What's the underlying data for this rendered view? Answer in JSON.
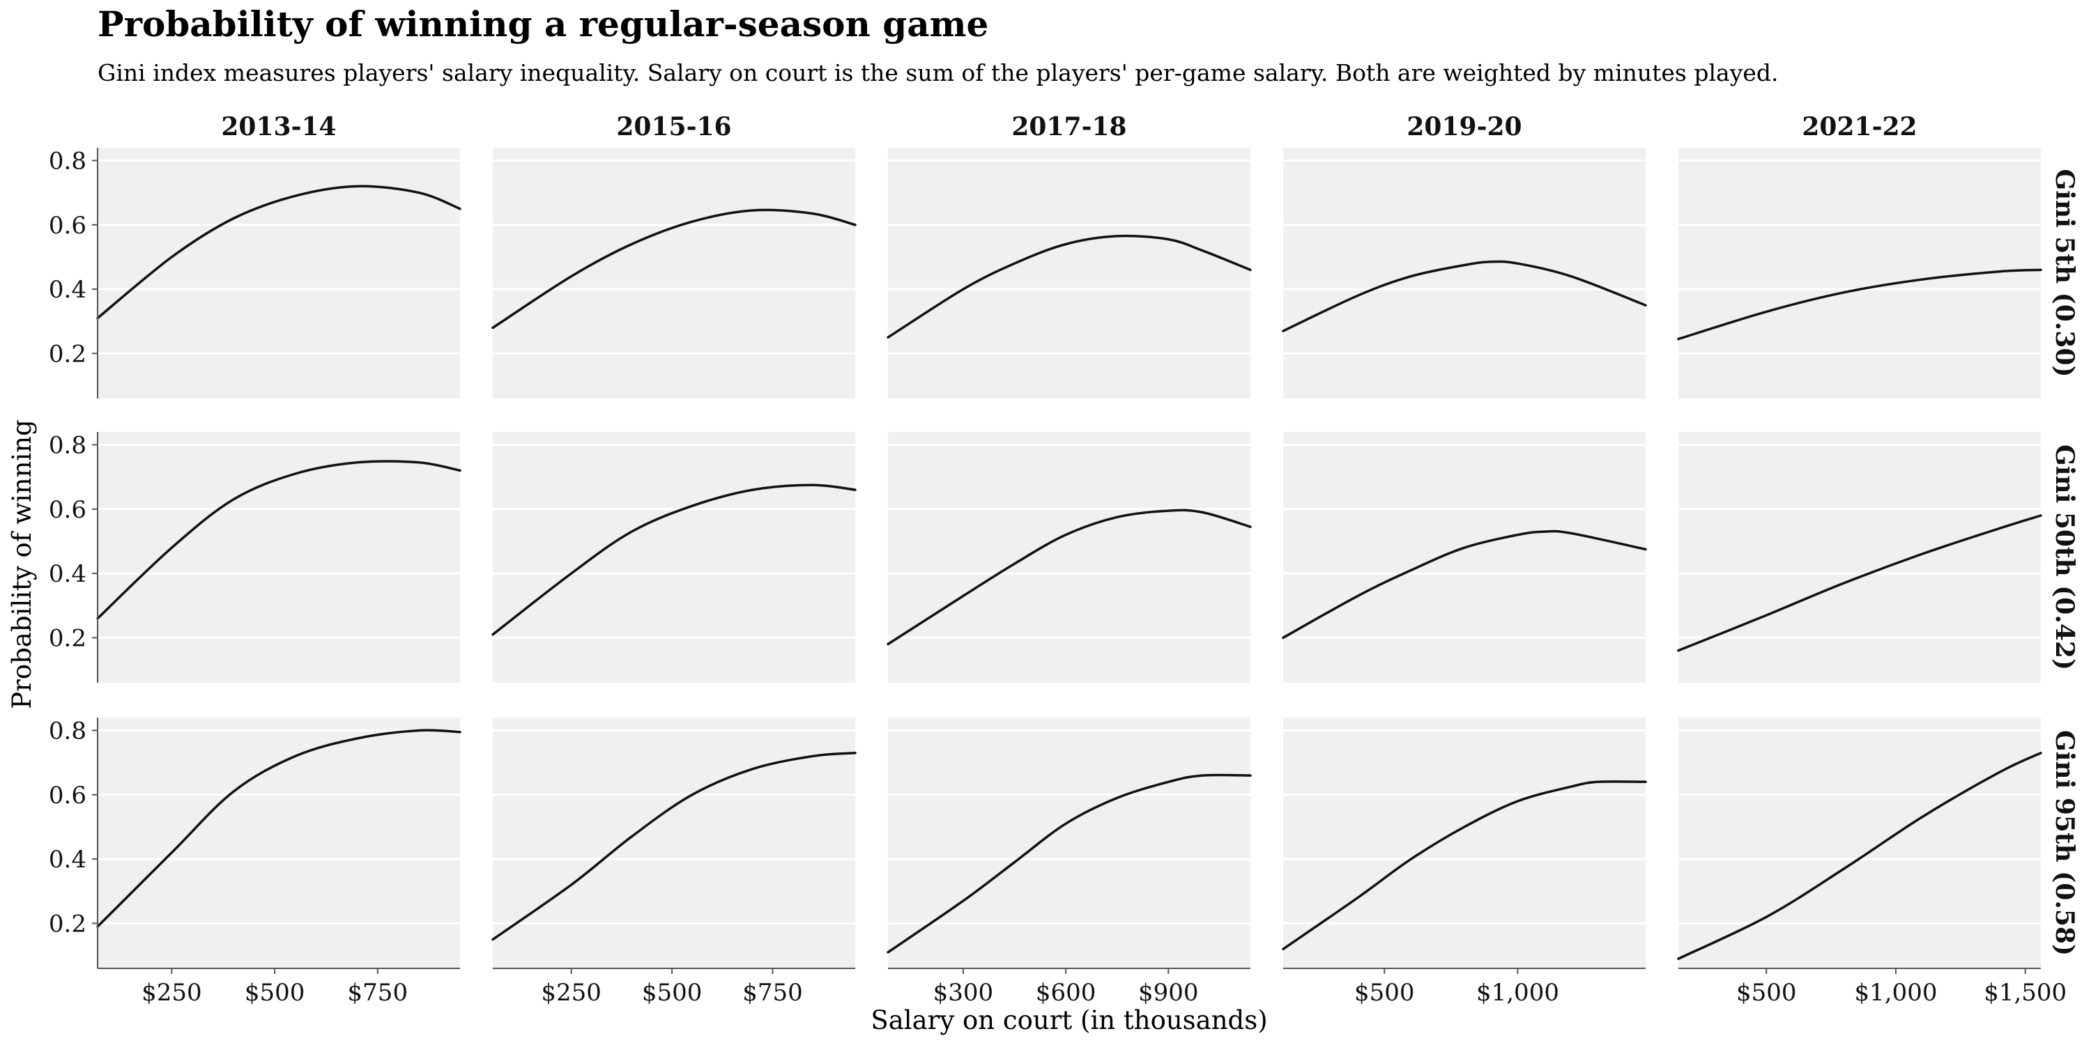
{
  "chart_data": {
    "type": "line",
    "title": "Probability of winning a regular-season game",
    "subtitle": "Gini index measures players' salary inequality. Salary on court is the sum of the players' per-game salary. Both are weighted by minutes played.",
    "xlabel": "Salary on court (in thousands)",
    "ylabel": "Probability of winning",
    "ylim": [
      0.06,
      0.84
    ],
    "y_ticks": [
      0.2,
      0.4,
      0.6,
      0.8
    ],
    "y_tick_labels": [
      "0.2",
      "0.4",
      "0.6",
      "0.8"
    ],
    "grid": true,
    "columns": [
      {
        "season": "2013-14",
        "xlim": [
          70,
          950
        ],
        "x_ticks": [
          250,
          500,
          750
        ],
        "x_tick_labels": [
          "$250",
          "$500",
          "$750"
        ]
      },
      {
        "season": "2015-16",
        "xlim": [
          55,
          955
        ],
        "x_ticks": [
          250,
          500,
          750
        ],
        "x_tick_labels": [
          "$250",
          "$500",
          "$750"
        ]
      },
      {
        "season": "2017-18",
        "xlim": [
          80,
          1140
        ],
        "x_ticks": [
          300,
          600,
          900
        ],
        "x_tick_labels": [
          "$300",
          "$600",
          "$900"
        ]
      },
      {
        "season": "2019-20",
        "xlim": [
          120,
          1480
        ],
        "x_ticks": [
          500,
          1000
        ],
        "x_tick_labels": [
          "$500",
          "$1,000"
        ]
      },
      {
        "season": "2021-22",
        "xlim": [
          160,
          1560
        ],
        "x_ticks": [
          500,
          1000,
          1500
        ],
        "x_tick_labels": [
          "$500",
          "$1,000",
          "$1,500"
        ]
      }
    ],
    "rows": [
      {
        "label": "Gini 5th (0.30)"
      },
      {
        "label": "Gini 50th (0.42)"
      },
      {
        "label": "Gini 95th (0.58)"
      }
    ],
    "panels": [
      [
        {
          "x": [
            70,
            250,
            400,
            550,
            700,
            850,
            950
          ],
          "y": [
            0.31,
            0.5,
            0.62,
            0.69,
            0.72,
            0.7,
            0.65
          ]
        },
        {
          "x": [
            55,
            250,
            400,
            550,
            700,
            850,
            955
          ],
          "y": [
            0.28,
            0.44,
            0.54,
            0.61,
            0.645,
            0.635,
            0.6
          ]
        },
        {
          "x": [
            80,
            300,
            450,
            600,
            750,
            900,
            1000,
            1140
          ],
          "y": [
            0.25,
            0.4,
            0.48,
            0.54,
            0.565,
            0.555,
            0.52,
            0.46
          ]
        },
        {
          "x": [
            120,
            400,
            600,
            800,
            900,
            1000,
            1200,
            1480
          ],
          "y": [
            0.27,
            0.38,
            0.44,
            0.475,
            0.485,
            0.48,
            0.44,
            0.35
          ]
        },
        {
          "x": [
            160,
            500,
            800,
            1100,
            1400,
            1560
          ],
          "y": [
            0.245,
            0.33,
            0.39,
            0.43,
            0.455,
            0.46
          ]
        }
      ],
      [
        {
          "x": [
            70,
            250,
            400,
            550,
            700,
            850,
            950
          ],
          "y": [
            0.26,
            0.48,
            0.63,
            0.71,
            0.745,
            0.745,
            0.72
          ]
        },
        {
          "x": [
            55,
            250,
            400,
            550,
            700,
            850,
            955
          ],
          "y": [
            0.21,
            0.4,
            0.53,
            0.61,
            0.66,
            0.675,
            0.66
          ]
        },
        {
          "x": [
            80,
            300,
            450,
            600,
            750,
            900,
            1000,
            1140
          ],
          "y": [
            0.18,
            0.33,
            0.43,
            0.52,
            0.575,
            0.595,
            0.59,
            0.545
          ]
        },
        {
          "x": [
            120,
            400,
            600,
            800,
            1000,
            1100,
            1200,
            1480
          ],
          "y": [
            0.2,
            0.33,
            0.41,
            0.48,
            0.52,
            0.53,
            0.525,
            0.475
          ]
        },
        {
          "x": [
            160,
            500,
            800,
            1100,
            1400,
            1560
          ],
          "y": [
            0.16,
            0.27,
            0.37,
            0.46,
            0.54,
            0.58
          ]
        }
      ],
      [
        {
          "x": [
            70,
            250,
            400,
            550,
            700,
            850,
            950
          ],
          "y": [
            0.19,
            0.42,
            0.61,
            0.72,
            0.775,
            0.8,
            0.795
          ]
        },
        {
          "x": [
            55,
            250,
            400,
            550,
            700,
            850,
            955
          ],
          "y": [
            0.15,
            0.32,
            0.47,
            0.6,
            0.68,
            0.72,
            0.73
          ]
        },
        {
          "x": [
            80,
            300,
            450,
            600,
            750,
            900,
            1000,
            1140
          ],
          "y": [
            0.11,
            0.27,
            0.39,
            0.51,
            0.59,
            0.64,
            0.66,
            0.66
          ]
        },
        {
          "x": [
            120,
            400,
            600,
            800,
            1000,
            1200,
            1300,
            1480
          ],
          "y": [
            0.12,
            0.28,
            0.4,
            0.5,
            0.58,
            0.625,
            0.64,
            0.64
          ]
        },
        {
          "x": [
            160,
            500,
            800,
            1100,
            1400,
            1560
          ],
          "y": [
            0.09,
            0.22,
            0.37,
            0.53,
            0.67,
            0.73
          ]
        }
      ]
    ],
    "colors": {
      "panel_background": "#f0f0f0",
      "grid": "#ffffff",
      "line": "#111111",
      "axis": "#555555",
      "text": "#111111"
    }
  }
}
